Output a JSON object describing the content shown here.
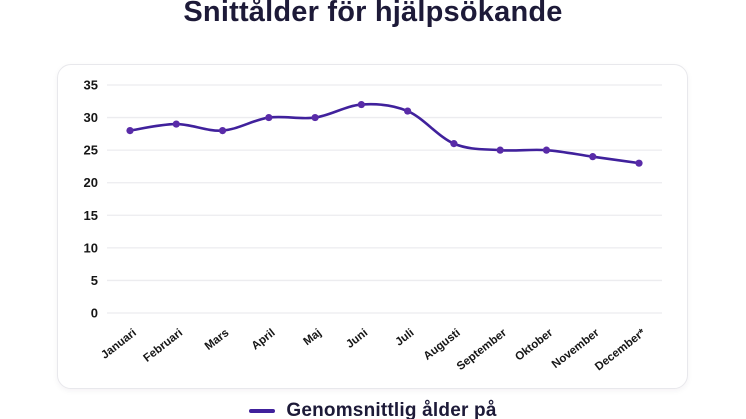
{
  "page": {
    "title": "Snittålder för hjälpsökande"
  },
  "colors": {
    "title_text": "#1d1a38",
    "line": "#40219c",
    "point": "#592ba8",
    "grid": "#ececef",
    "axis_text": "#161616",
    "card_border": "#e8e8ec",
    "background": "#ffffff"
  },
  "legend": {
    "label": "Genomsnittlig ålder på",
    "marker": "line-marker"
  },
  "chart_data": {
    "type": "line",
    "title": "Snittålder för hjälpsökande",
    "categories": [
      "Januari",
      "Februari",
      "Mars",
      "April",
      "Maj",
      "Juni",
      "Juli",
      "Augusti",
      "September",
      "Oktober",
      "November",
      "December*"
    ],
    "series": [
      {
        "name": "Genomsnittlig ålder på",
        "values": [
          28,
          29,
          28,
          30,
          30,
          32,
          31,
          26,
          25,
          25,
          24,
          23
        ]
      }
    ],
    "xlabel": "",
    "ylabel": "",
    "ylim": [
      0,
      35
    ],
    "yticks": [
      0,
      5,
      10,
      15,
      20,
      25,
      30,
      35
    ],
    "grid": "horizontal",
    "legend_position": "bottom",
    "x_tick_rotation": -38,
    "smooth": true
  }
}
